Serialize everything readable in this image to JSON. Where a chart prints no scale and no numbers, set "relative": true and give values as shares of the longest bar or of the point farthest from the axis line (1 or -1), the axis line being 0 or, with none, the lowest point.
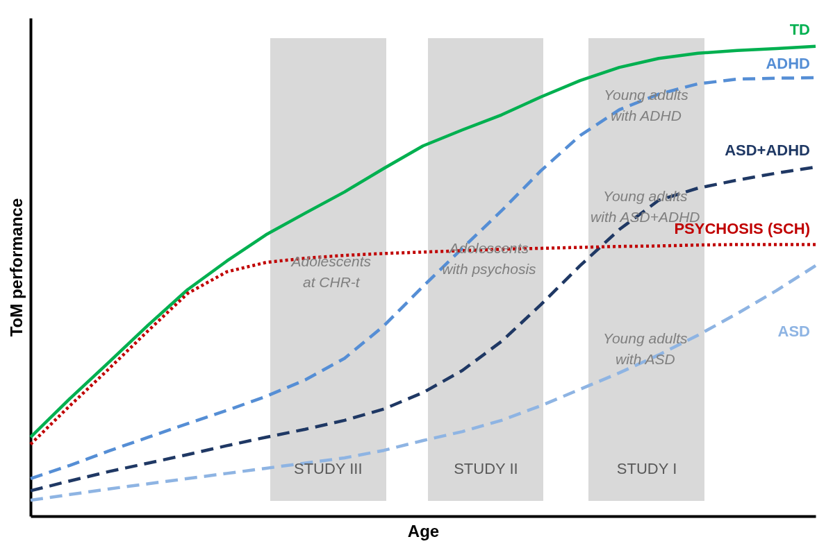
{
  "chart_data": {
    "type": "line",
    "relative": true,
    "xlabel": "Age",
    "ylabel": "ToM performance",
    "grid": false,
    "marker": "none",
    "categories": [
      null,
      null,
      null,
      null,
      null,
      null,
      null,
      null,
      null,
      null,
      null,
      null,
      null,
      null,
      null,
      null,
      null,
      null,
      null,
      null,
      null
    ],
    "series": [
      {
        "name": "TD",
        "color": "#00b050",
        "line_style": "solid",
        "values": [
          0.168,
          0.25,
          0.328,
          0.407,
          0.482,
          0.543,
          0.599,
          0.645,
          0.69,
          0.74,
          0.788,
          0.822,
          0.854,
          0.892,
          0.927,
          0.955,
          0.974,
          0.985,
          0.991,
          0.995,
          1
        ]
      },
      {
        "name": "ADHD",
        "color": "#558ed5",
        "line_style": "dashed",
        "values": [
          0.08,
          0.108,
          0.139,
          0.168,
          0.197,
          0.225,
          0.255,
          0.29,
          0.336,
          0.405,
          0.489,
          0.57,
          0.65,
          0.735,
          0.81,
          0.865,
          0.898,
          0.92,
          0.93,
          0.932,
          0.933
        ]
      },
      {
        "name": "ASD+ADHD",
        "color": "#1f3864",
        "line_style": "dashed",
        "values": [
          0.054,
          0.075,
          0.095,
          0.113,
          0.131,
          0.15,
          0.168,
          0.185,
          0.204,
          0.228,
          0.263,
          0.31,
          0.372,
          0.45,
          0.533,
          0.61,
          0.672,
          0.698,
          0.715,
          0.73,
          0.743
        ]
      },
      {
        "name": "PSYCHOSIS (SCH)",
        "color": "#c00000",
        "line_style": "dotted",
        "values": [
          0.153,
          0.235,
          0.314,
          0.395,
          0.474,
          0.52,
          0.54,
          0.549,
          0.555,
          0.559,
          0.562,
          0.565,
          0.568,
          0.57,
          0.572,
          0.574,
          0.575,
          0.577,
          0.578,
          0.578,
          0.578
        ]
      },
      {
        "name": "ASD",
        "color": "#8eb4e3",
        "line_style": "dashed",
        "values": [
          0.034,
          0.046,
          0.058,
          0.069,
          0.08,
          0.091,
          0.102,
          0.113,
          0.124,
          0.14,
          0.161,
          0.18,
          0.204,
          0.235,
          0.27,
          0.305,
          0.343,
          0.385,
          0.431,
          0.48,
          0.533
        ]
      }
    ],
    "annotations": [
      "Adolescents\nat CHR-t",
      "Adolescents\nwith psychosis",
      "Young adults\nwith ADHD",
      "Young adults\nwith ASD+ADHD",
      "Young adults\nwith ASD",
      "STUDY III",
      "STUDY II",
      "STUDY I"
    ]
  }
}
